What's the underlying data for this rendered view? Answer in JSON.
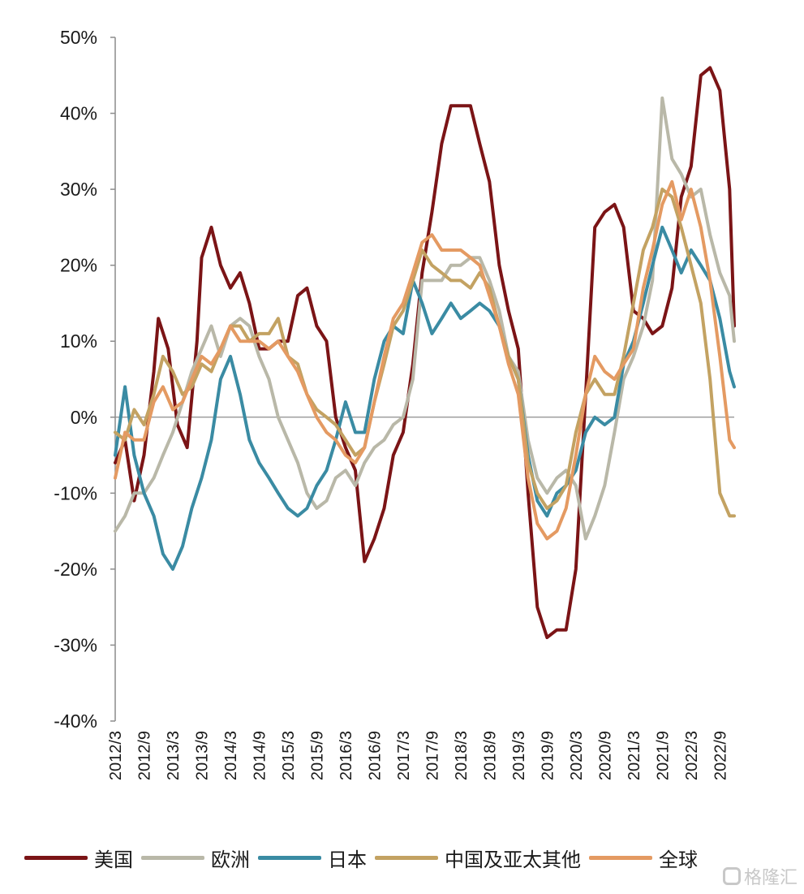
{
  "chart_data": {
    "type": "line",
    "title": "",
    "xlabel": "",
    "ylabel": "",
    "ylim": [
      -40,
      50
    ],
    "y_ticks": [
      "50%",
      "40%",
      "30%",
      "20%",
      "10%",
      "0%",
      "-10%",
      "-20%",
      "-30%",
      "-40%"
    ],
    "y_tick_values": [
      50,
      40,
      30,
      20,
      10,
      0,
      -10,
      -20,
      -30,
      -40
    ],
    "x_range": [
      2012.0,
      2022.75
    ],
    "x_ticks": [
      "2012/3",
      "2012/9",
      "2013/3",
      "2013/9",
      "2014/3",
      "2014/9",
      "2015/3",
      "2015/9",
      "2016/3",
      "2016/9",
      "2017/3",
      "2017/9",
      "2018/3",
      "2018/9",
      "2019/3",
      "2019/9",
      "2020/3",
      "2020/9",
      "2021/3",
      "2021/9",
      "2022/3",
      "2022/9"
    ],
    "grid": false,
    "legend_position": "bottom",
    "series": [
      {
        "name": "美国",
        "color": "#7b1416",
        "x": [
          2012.0,
          2012.17,
          2012.33,
          2012.5,
          2012.67,
          2012.75,
          2012.92,
          2013.08,
          2013.25,
          2013.42,
          2013.5,
          2013.67,
          2013.83,
          2014.0,
          2014.17,
          2014.33,
          2014.5,
          2014.67,
          2014.83,
          2015.0,
          2015.17,
          2015.33,
          2015.5,
          2015.67,
          2015.83,
          2016.0,
          2016.17,
          2016.33,
          2016.5,
          2016.67,
          2016.83,
          2017.0,
          2017.17,
          2017.33,
          2017.5,
          2017.67,
          2017.83,
          2018.0,
          2018.17,
          2018.33,
          2018.5,
          2018.67,
          2018.83,
          2019.0,
          2019.17,
          2019.33,
          2019.5,
          2019.67,
          2019.83,
          2020.0,
          2020.17,
          2020.33,
          2020.5,
          2020.67,
          2020.83,
          2021.0,
          2021.17,
          2021.33,
          2021.5,
          2021.67,
          2021.83,
          2022.0,
          2022.17,
          2022.33,
          2022.5,
          2022.67,
          2022.75
        ],
        "values": [
          -6,
          -3,
          -11,
          -5,
          6,
          13,
          9,
          -1,
          -4,
          10,
          21,
          25,
          20,
          17,
          19,
          15,
          9,
          9,
          10,
          10,
          16,
          17,
          12,
          10,
          0,
          -4,
          -7,
          -19,
          -16,
          -12,
          -5,
          -2,
          7,
          19,
          27,
          36,
          41,
          41,
          41,
          36,
          31,
          20,
          14,
          9,
          -10,
          -25,
          -29,
          -28,
          -28,
          -20,
          3,
          25,
          27,
          28,
          25,
          14,
          13,
          11,
          12,
          17,
          29,
          33,
          45,
          46,
          43,
          30,
          12
        ]
      },
      {
        "name": "欧洲",
        "color": "#b9b8a8",
        "x": [
          2012.0,
          2012.17,
          2012.33,
          2012.5,
          2012.67,
          2012.83,
          2013.0,
          2013.17,
          2013.33,
          2013.5,
          2013.67,
          2013.83,
          2014.0,
          2014.17,
          2014.33,
          2014.5,
          2014.67,
          2014.83,
          2015.0,
          2015.17,
          2015.33,
          2015.5,
          2015.67,
          2015.83,
          2016.0,
          2016.17,
          2016.33,
          2016.5,
          2016.67,
          2016.83,
          2017.0,
          2017.17,
          2017.33,
          2017.5,
          2017.67,
          2017.83,
          2018.0,
          2018.17,
          2018.33,
          2018.5,
          2018.67,
          2018.83,
          2019.0,
          2019.17,
          2019.33,
          2019.5,
          2019.67,
          2019.83,
          2020.0,
          2020.17,
          2020.33,
          2020.5,
          2020.67,
          2020.83,
          2021.0,
          2021.17,
          2021.33,
          2021.5,
          2021.67,
          2021.83,
          2022.0,
          2022.17,
          2022.33,
          2022.5,
          2022.67,
          2022.75
        ],
        "values": [
          -15,
          -13,
          -10,
          -10,
          -8,
          -5,
          -2,
          2,
          6,
          9,
          12,
          8,
          12,
          13,
          12,
          8,
          5,
          0,
          -3,
          -6,
          -10,
          -12,
          -11,
          -8,
          -7,
          -9,
          -6,
          -4,
          -3,
          -1,
          0,
          5,
          18,
          18,
          18,
          20,
          20,
          21,
          21,
          18,
          14,
          8,
          6,
          -3,
          -8,
          -10,
          -8,
          -7,
          -9,
          -16,
          -13,
          -9,
          -2,
          5,
          8,
          12,
          18,
          42,
          34,
          32,
          29,
          30,
          24,
          19,
          16,
          10
        ]
      },
      {
        "name": "日本",
        "color": "#3a8ba3",
        "x": [
          2012.0,
          2012.17,
          2012.33,
          2012.5,
          2012.67,
          2012.83,
          2013.0,
          2013.17,
          2013.33,
          2013.5,
          2013.67,
          2013.83,
          2014.0,
          2014.17,
          2014.33,
          2014.5,
          2014.67,
          2014.83,
          2015.0,
          2015.17,
          2015.33,
          2015.5,
          2015.67,
          2015.83,
          2016.0,
          2016.17,
          2016.33,
          2016.5,
          2016.67,
          2016.83,
          2017.0,
          2017.17,
          2017.33,
          2017.5,
          2017.67,
          2017.83,
          2018.0,
          2018.17,
          2018.33,
          2018.5,
          2018.67,
          2018.83,
          2019.0,
          2019.17,
          2019.33,
          2019.5,
          2019.67,
          2019.83,
          2020.0,
          2020.17,
          2020.33,
          2020.5,
          2020.67,
          2020.83,
          2021.0,
          2021.17,
          2021.33,
          2021.5,
          2021.67,
          2021.83,
          2022.0,
          2022.17,
          2022.33,
          2022.5,
          2022.67,
          2022.75
        ],
        "values": [
          -5,
          4,
          -5,
          -10,
          -13,
          -18,
          -20,
          -17,
          -12,
          -8,
          -3,
          5,
          8,
          3,
          -3,
          -6,
          -8,
          -10,
          -12,
          -13,
          -12,
          -9,
          -7,
          -3,
          2,
          -2,
          -2,
          5,
          10,
          12,
          11,
          18,
          15,
          11,
          13,
          15,
          13,
          14,
          15,
          14,
          12,
          8,
          5,
          -5,
          -11,
          -13,
          -10,
          -9,
          -7,
          -2,
          0,
          -1,
          0,
          7,
          10,
          15,
          20,
          25,
          22,
          19,
          22,
          20,
          18,
          13,
          6,
          4
        ]
      },
      {
        "name": "中国及亚太其他",
        "color": "#c3a262",
        "x": [
          2012.0,
          2012.17,
          2012.33,
          2012.5,
          2012.67,
          2012.83,
          2013.0,
          2013.17,
          2013.33,
          2013.5,
          2013.67,
          2013.83,
          2014.0,
          2014.17,
          2014.33,
          2014.5,
          2014.67,
          2014.83,
          2015.0,
          2015.17,
          2015.33,
          2015.5,
          2015.67,
          2015.83,
          2016.0,
          2016.17,
          2016.33,
          2016.5,
          2016.67,
          2016.83,
          2017.0,
          2017.17,
          2017.33,
          2017.5,
          2017.67,
          2017.83,
          2018.0,
          2018.17,
          2018.33,
          2018.5,
          2018.67,
          2018.83,
          2019.0,
          2019.17,
          2019.33,
          2019.5,
          2019.67,
          2019.83,
          2020.0,
          2020.17,
          2020.33,
          2020.5,
          2020.67,
          2020.83,
          2021.0,
          2021.17,
          2021.33,
          2021.5,
          2021.67,
          2021.83,
          2022.0,
          2022.17,
          2022.33,
          2022.5,
          2022.67,
          2022.75
        ],
        "values": [
          -2,
          -3,
          1,
          -1,
          3,
          8,
          6,
          3,
          4,
          7,
          6,
          9,
          12,
          12,
          10,
          11,
          11,
          13,
          8,
          7,
          3,
          1,
          0,
          -1,
          -3,
          -5,
          -4,
          2,
          7,
          12,
          14,
          18,
          22,
          20,
          19,
          18,
          18,
          17,
          19,
          17,
          12,
          8,
          5,
          -6,
          -10,
          -12,
          -11,
          -9,
          -2,
          3,
          5,
          3,
          3,
          8,
          15,
          22,
          25,
          30,
          29,
          25,
          20,
          15,
          5,
          -10,
          -13,
          -13
        ]
      },
      {
        "name": "全球",
        "color": "#e49a62",
        "x": [
          2012.0,
          2012.17,
          2012.33,
          2012.5,
          2012.67,
          2012.83,
          2013.0,
          2013.17,
          2013.33,
          2013.5,
          2013.67,
          2013.83,
          2014.0,
          2014.17,
          2014.33,
          2014.5,
          2014.67,
          2014.83,
          2015.0,
          2015.17,
          2015.33,
          2015.5,
          2015.67,
          2015.83,
          2016.0,
          2016.17,
          2016.33,
          2016.5,
          2016.67,
          2016.83,
          2017.0,
          2017.17,
          2017.33,
          2017.5,
          2017.67,
          2017.83,
          2018.0,
          2018.17,
          2018.33,
          2018.5,
          2018.67,
          2018.83,
          2019.0,
          2019.17,
          2019.33,
          2019.5,
          2019.67,
          2019.83,
          2020.0,
          2020.17,
          2020.33,
          2020.5,
          2020.67,
          2020.83,
          2021.0,
          2021.17,
          2021.33,
          2021.5,
          2021.67,
          2021.83,
          2022.0,
          2022.17,
          2022.33,
          2022.5,
          2022.67,
          2022.75
        ],
        "values": [
          -8,
          -2,
          -3,
          -3,
          2,
          4,
          1,
          2,
          5,
          8,
          7,
          9,
          12,
          10,
          10,
          10,
          9,
          10,
          8,
          6,
          3,
          0,
          -2,
          -3,
          -5,
          -6,
          -4,
          2,
          8,
          13,
          15,
          19,
          23,
          24,
          22,
          22,
          22,
          21,
          20,
          16,
          12,
          7,
          3,
          -8,
          -14,
          -16,
          -15,
          -12,
          -5,
          3,
          8,
          6,
          5,
          7,
          9,
          17,
          22,
          28,
          31,
          26,
          30,
          25,
          18,
          8,
          -3,
          -4
        ]
      }
    ]
  }
}
